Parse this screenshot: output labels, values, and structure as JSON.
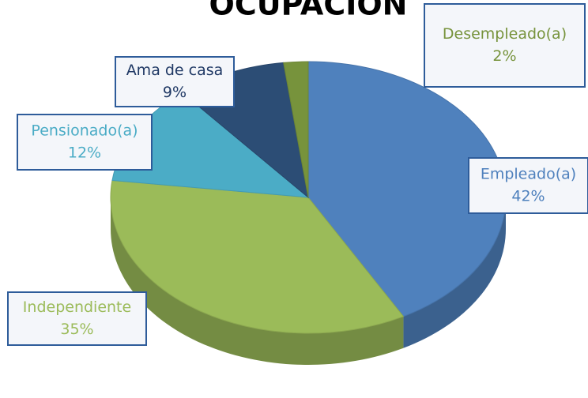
{
  "chart_data": {
    "type": "pie",
    "title": "OCUPACION",
    "categories": [
      "Empleado(a)",
      "Independiente",
      "Pensionado(a)",
      "Ama de casa",
      "Desempleado(a)"
    ],
    "values": [
      42,
      35,
      12,
      9,
      2
    ],
    "value_labels": [
      "42%",
      "35%",
      "12%",
      "9%",
      "2%"
    ],
    "colors": [
      "#4f81bd",
      "#9bbb59",
      "#4bacc6",
      "#2c4d75",
      "#77933c"
    ]
  }
}
